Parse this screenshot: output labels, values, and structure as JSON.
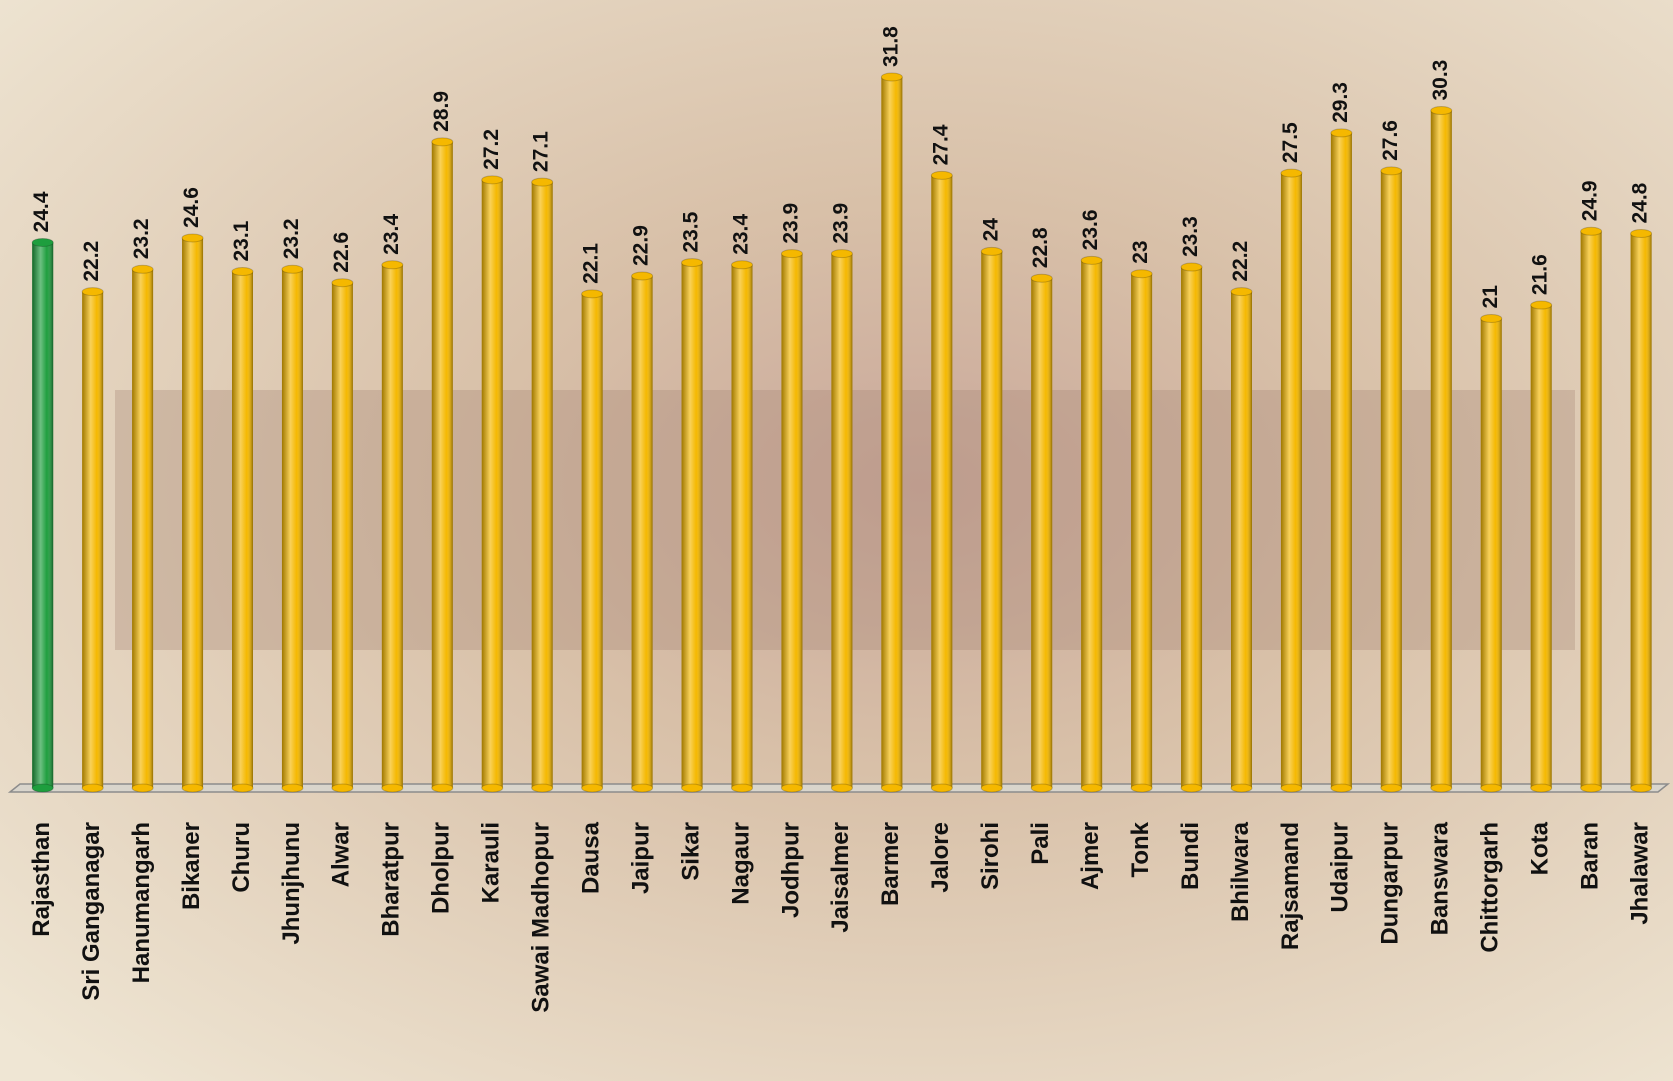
{
  "chart_data": {
    "type": "bar",
    "categories": [
      "Rajasthan",
      "Sri Ganganagar",
      "Hanumangarh",
      "Bikaner",
      "Churu",
      "Jhunjhunu",
      "Alwar",
      "Bharatpur",
      "Dholpur",
      "Karauli",
      "Sawai Madhopur",
      "Dausa",
      "Jaipur",
      "Sikar",
      "Nagaur",
      "Jodhpur",
      "Jaisalmer",
      "Barmer",
      "Jalore",
      "Sirohi",
      "Pali",
      "Ajmer",
      "Tonk",
      "Bundi",
      "Bhilwara",
      "Rajsamand",
      "Udaipur",
      "Dungarpur",
      "Banswara",
      "Chittorgarh",
      "Kota",
      "Baran",
      "Jhalawar"
    ],
    "values": [
      24.4,
      22.2,
      23.2,
      24.6,
      23.1,
      23.2,
      22.6,
      23.4,
      28.9,
      27.2,
      27.1,
      22.1,
      22.9,
      23.5,
      23.4,
      23.9,
      23.9,
      31.8,
      27.4,
      24,
      22.8,
      23.6,
      23,
      23.3,
      22.2,
      27.5,
      29.3,
      27.6,
      30.3,
      21,
      21.6,
      24.9,
      24.8
    ],
    "colors": [
      "#1e9e3e",
      "#f5b800",
      "#f5b800",
      "#f5b800",
      "#f5b800",
      "#f5b800",
      "#f5b800",
      "#f5b800",
      "#f5b800",
      "#f5b800",
      "#f5b800",
      "#f5b800",
      "#f5b800",
      "#f5b800",
      "#f5b800",
      "#f5b800",
      "#f5b800",
      "#f5b800",
      "#f5b800",
      "#f5b800",
      "#f5b800",
      "#f5b800",
      "#f5b800",
      "#f5b800",
      "#f5b800",
      "#f5b800",
      "#f5b800",
      "#f5b800",
      "#f5b800",
      "#f5b800",
      "#f5b800",
      "#f5b800",
      "#f5b800"
    ]
  }
}
